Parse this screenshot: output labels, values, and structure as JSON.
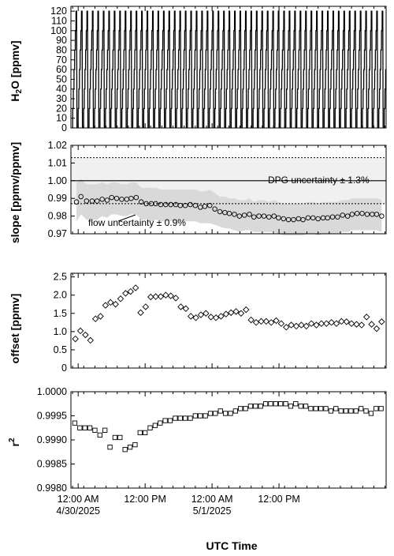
{
  "chart_data": [
    {
      "type": "line",
      "ylabel": "H2O [ppmv]",
      "ylim": [
        0,
        125
      ],
      "yticks": [
        0,
        10,
        20,
        30,
        40,
        50,
        60,
        70,
        80,
        90,
        100,
        110,
        120
      ],
      "xlim_hours": [
        -1.3,
        55.2
      ],
      "description": "DPG calibration sawtooth: repeated step ramps 0 to ~120 ppmv, about 56 cycles across two days",
      "cycle_hours": 0.98,
      "levels": [
        0,
        20,
        40,
        60,
        80,
        100,
        120
      ],
      "series": [
        {
          "values": []
        }
      ]
    },
    {
      "type": "scatter",
      "ylabel": "slope [ppmv/ppmv]",
      "ylim": [
        0.97,
        1.02
      ],
      "yticks": [
        "0.97",
        "0.98",
        "0.99",
        "1.00",
        "1.01",
        "1.02"
      ],
      "reference_line": 1.0,
      "dpg_uncertainty_bounds": [
        0.987,
        1.013
      ],
      "dpg_label": "DPG uncertainty ± 1.3%",
      "flow_label": "flow uncertainty ± 0.9%",
      "x_hours": [
        -0.3,
        0.5,
        1.5,
        2.5,
        3.4,
        4.3,
        5.2,
        6.0,
        6.9,
        7.8,
        8.7,
        9.5,
        10.4,
        11.3,
        12.2,
        13.1,
        13.9,
        14.8,
        15.7,
        16.6,
        17.5,
        18.3,
        19.2,
        20.1,
        21.0,
        21.9,
        22.7,
        23.6,
        24.5,
        25.4,
        26.3,
        27.1,
        28.0,
        28.9,
        29.8,
        30.7,
        31.5,
        32.4,
        33.3,
        34.2,
        35.1,
        35.9,
        36.8,
        37.7,
        38.6,
        39.5,
        40.3,
        41.2,
        42.1,
        43.0,
        43.9,
        44.7,
        45.6,
        46.5,
        47.4,
        48.3,
        49.1,
        50.0,
        50.9,
        51.8,
        52.7,
        53.5,
        54.4
      ],
      "values": [
        0.988,
        0.991,
        0.9885,
        0.9885,
        0.9885,
        0.9895,
        0.989,
        0.9905,
        0.99,
        0.9895,
        0.9895,
        0.99,
        0.9905,
        0.988,
        0.987,
        0.987,
        0.987,
        0.9865,
        0.9865,
        0.9865,
        0.9865,
        0.986,
        0.986,
        0.9865,
        0.986,
        0.985,
        0.9855,
        0.986,
        0.984,
        0.9825,
        0.982,
        0.9815,
        0.981,
        0.98,
        0.9805,
        0.981,
        0.9795,
        0.98,
        0.98,
        0.9795,
        0.98,
        0.979,
        0.9785,
        0.978,
        0.978,
        0.9785,
        0.978,
        0.979,
        0.979,
        0.9785,
        0.979,
        0.979,
        0.9795,
        0.9795,
        0.9805,
        0.98,
        0.981,
        0.9815,
        0.9815,
        0.981,
        0.981,
        0.981,
        0.98
      ],
      "band_upper": [
        0.999,
        1.001,
        0.998,
        0.998,
        0.998,
        0.999,
        0.998,
        0.999,
        0.999,
        0.998,
        0.998,
        0.999,
        0.999,
        0.996,
        0.996,
        0.996,
        0.996,
        0.995,
        0.995,
        0.995,
        0.995,
        0.995,
        0.995,
        0.995,
        0.995,
        0.994,
        0.994,
        0.995,
        0.993,
        0.991,
        0.991,
        0.99,
        0.99,
        0.989,
        0.989,
        0.99,
        0.988,
        0.989,
        0.989,
        0.988,
        0.989,
        0.988,
        0.987,
        0.987,
        0.987,
        0.987,
        0.987,
        0.988,
        0.988,
        0.987,
        0.988,
        0.988,
        0.988,
        0.988,
        0.989,
        0.989,
        0.99,
        0.99,
        0.99,
        0.99,
        0.99,
        0.99,
        0.989
      ],
      "band_lower": [
        0.977,
        0.981,
        0.978,
        0.978,
        0.978,
        0.98,
        0.979,
        0.981,
        0.981,
        0.98,
        0.98,
        0.981,
        0.981,
        0.978,
        0.978,
        0.977,
        0.978,
        0.977,
        0.977,
        0.977,
        0.977,
        0.977,
        0.977,
        0.977,
        0.977,
        0.976,
        0.976,
        0.976,
        0.975,
        0.974,
        0.973,
        0.973,
        0.972,
        0.971,
        0.972,
        0.972,
        0.971,
        0.971,
        0.971,
        0.971,
        0.971,
        0.97,
        0.969,
        0.969,
        0.969,
        0.969,
        0.969,
        0.97,
        0.97,
        0.969,
        0.97,
        0.97,
        0.97,
        0.97,
        0.971,
        0.971,
        0.972,
        0.972,
        0.972,
        0.972,
        0.972,
        0.972,
        0.971
      ]
    },
    {
      "type": "scatter",
      "ylabel": "offset [ppmv]",
      "ylim": [
        0,
        2.6
      ],
      "yticks": [
        "0",
        "0.5",
        "1.0",
        "1.5",
        "2.0",
        "2.5"
      ],
      "marker": "diamond",
      "x_hours": [
        -0.5,
        0.4,
        1.3,
        2.2,
        3.1,
        4.0,
        4.9,
        5.8,
        6.7,
        7.6,
        8.5,
        9.4,
        10.3,
        11.2,
        12.1,
        13.0,
        13.9,
        14.8,
        15.7,
        16.6,
        17.5,
        18.4,
        19.3,
        20.2,
        21.1,
        22.0,
        22.9,
        23.8,
        24.7,
        25.6,
        26.5,
        27.4,
        28.3,
        29.2,
        30.1,
        31.0,
        31.9,
        32.8,
        33.7,
        34.6,
        35.5,
        36.4,
        37.3,
        38.2,
        39.1,
        40.0,
        40.9,
        41.8,
        42.7,
        43.6,
        44.5,
        45.4,
        46.3,
        47.2,
        48.1,
        49.0,
        49.9,
        50.8,
        51.7,
        52.6,
        53.5,
        54.4
      ],
      "values": [
        0.8,
        1.02,
        0.91,
        0.76,
        1.35,
        1.42,
        1.72,
        1.8,
        1.75,
        1.9,
        2.05,
        2.1,
        2.2,
        1.52,
        1.68,
        1.95,
        1.96,
        1.96,
        2.0,
        1.98,
        1.92,
        1.68,
        1.63,
        1.42,
        1.38,
        1.46,
        1.5,
        1.4,
        1.38,
        1.42,
        1.48,
        1.52,
        1.55,
        1.5,
        1.6,
        1.32,
        1.25,
        1.28,
        1.28,
        1.25,
        1.3,
        1.22,
        1.12,
        1.18,
        1.15,
        1.18,
        1.15,
        1.22,
        1.18,
        1.22,
        1.22,
        1.25,
        1.22,
        1.28,
        1.27,
        1.22,
        1.2,
        1.18,
        1.4,
        1.2,
        1.08,
        1.27
      ]
    },
    {
      "type": "scatter",
      "ylabel": "r2",
      "ylim": [
        0.998,
        1.0
      ],
      "yticks": [
        "0.9980",
        "0.9985",
        "0.9990",
        "0.9995",
        "1.0000"
      ],
      "marker": "square",
      "x_hours": [
        -0.6,
        0.3,
        1.2,
        2.1,
        3.0,
        3.9,
        4.8,
        5.7,
        6.6,
        7.5,
        8.4,
        9.3,
        10.2,
        11.1,
        12.0,
        12.9,
        13.8,
        14.7,
        15.6,
        16.5,
        17.4,
        18.3,
        19.2,
        20.1,
        21.0,
        21.9,
        22.8,
        23.7,
        24.6,
        25.5,
        26.4,
        27.3,
        28.2,
        29.1,
        30.0,
        30.9,
        31.8,
        32.7,
        33.6,
        34.5,
        35.4,
        36.3,
        37.2,
        38.1,
        39.0,
        39.9,
        40.8,
        41.7,
        42.6,
        43.5,
        44.4,
        45.3,
        46.2,
        47.1,
        48.0,
        48.9,
        49.8,
        50.7,
        51.6,
        52.5,
        53.4,
        54.3
      ],
      "values": [
        0.99935,
        0.99925,
        0.99925,
        0.99925,
        0.9992,
        0.9991,
        0.9992,
        0.99885,
        0.99905,
        0.99905,
        0.9988,
        0.99885,
        0.9989,
        0.99915,
        0.99915,
        0.99925,
        0.9993,
        0.99935,
        0.9994,
        0.9994,
        0.99945,
        0.99945,
        0.99945,
        0.99945,
        0.9995,
        0.9995,
        0.9995,
        0.99955,
        0.99955,
        0.9996,
        0.99955,
        0.99955,
        0.9996,
        0.99965,
        0.99965,
        0.9997,
        0.9997,
        0.9997,
        0.99975,
        0.99975,
        0.99975,
        0.99975,
        0.99975,
        0.9997,
        0.99975,
        0.9997,
        0.9997,
        0.99965,
        0.99965,
        0.99965,
        0.99965,
        0.9996,
        0.99965,
        0.9996,
        0.9996,
        0.9996,
        0.9996,
        0.99965,
        0.9996,
        0.99955,
        0.99965,
        0.99965
      ]
    }
  ],
  "x_axis": {
    "label": "UTC Time",
    "ticks": [
      {
        "hours": 0,
        "line1": "12:00 AM",
        "line2": "4/30/2025"
      },
      {
        "hours": 12,
        "line1": "12:00 PM",
        "line2": ""
      },
      {
        "hours": 24,
        "line1": "12:00 AM",
        "line2": "5/1/2025"
      },
      {
        "hours": 36,
        "line1": "12:00 PM",
        "line2": ""
      }
    ],
    "minor_every_hours": 2
  },
  "colors": {
    "axes": "#000000",
    "band": "#d9d9d9",
    "dpg_band": "#f0f0f0"
  }
}
